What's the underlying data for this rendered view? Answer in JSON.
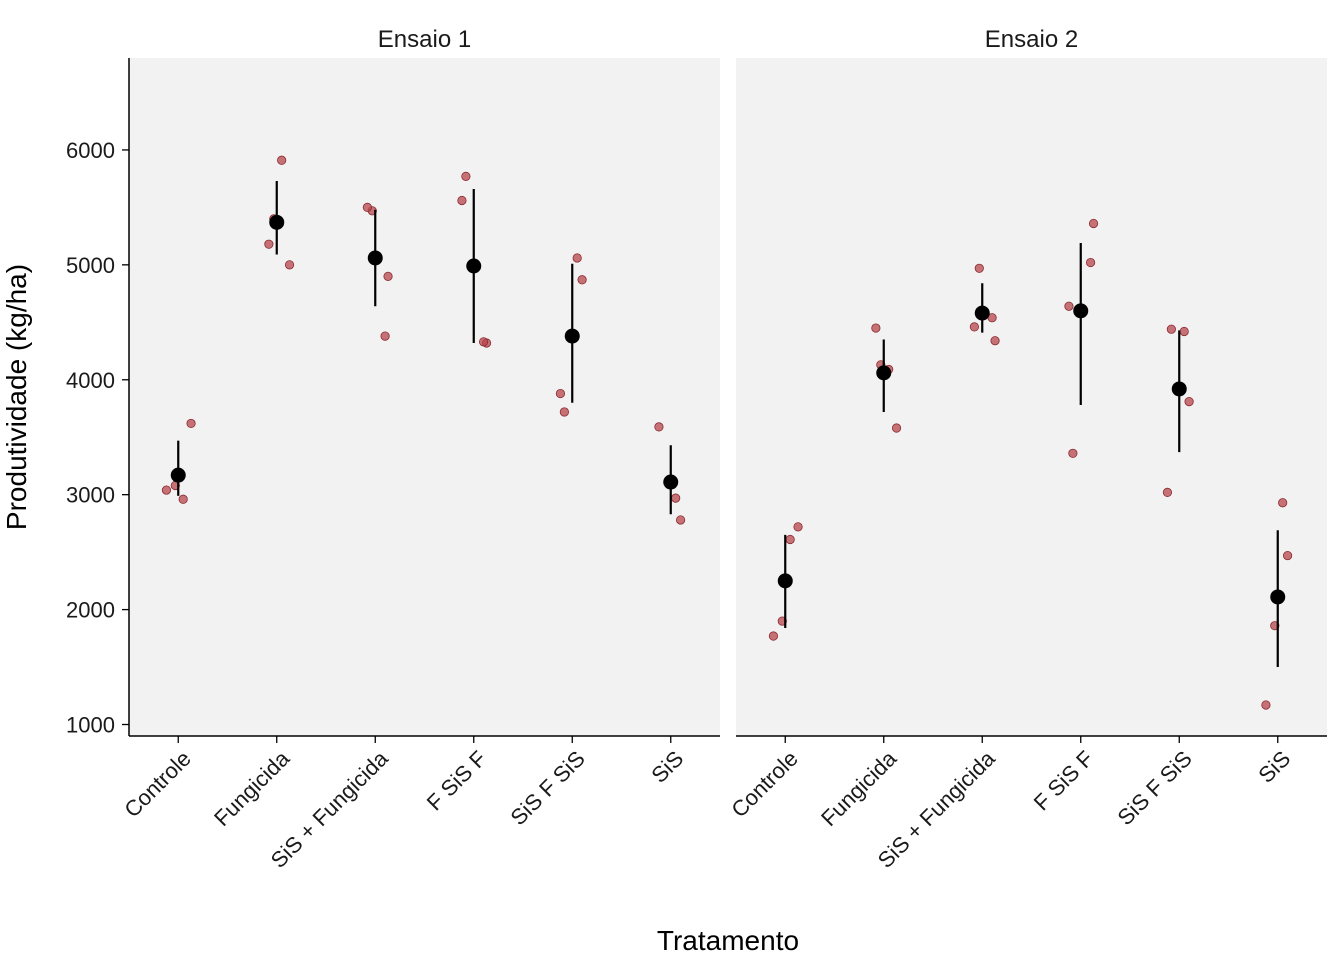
{
  "chart_data": {
    "type": "scatter",
    "ylabel": "Produtividade (kg/ha)",
    "xlabel": "Tratamento",
    "ylim": [
      900,
      6800
    ],
    "y_ticks": [
      1000,
      2000,
      3000,
      4000,
      5000,
      6000
    ],
    "categories": [
      "Controle",
      "Fungicida",
      "SiS + Fungicida",
      "F SiS F",
      "SiS F SiS",
      "SiS"
    ],
    "grid": false,
    "colors": {
      "panel_bg": "#f2f2f2",
      "raw_point": "#b5454b",
      "summary": "#000000"
    },
    "facets": [
      {
        "title": "Ensaio 1",
        "raw_points": [
          {
            "category": "Controle",
            "values": [
              3040,
              2960,
              3080,
              3620
            ]
          },
          {
            "category": "Fungicida",
            "values": [
              5910,
              5400,
              5000,
              5180
            ]
          },
          {
            "category": "SiS + Fungicida",
            "values": [
              5470,
              4900,
              5500,
              4380
            ]
          },
          {
            "category": "F SiS F",
            "values": [
              4320,
              5770,
              4330,
              5560
            ]
          },
          {
            "category": "SiS F SiS",
            "values": [
              3720,
              4870,
              3880,
              5060
            ]
          },
          {
            "category": "SiS",
            "values": [
              2780,
              3590,
              2970
            ]
          }
        ],
        "summary": [
          {
            "category": "Controle",
            "mean": 3170,
            "low": 2990,
            "high": 3470
          },
          {
            "category": "Fungicida",
            "mean": 5370,
            "low": 5090,
            "high": 5730
          },
          {
            "category": "SiS + Fungicida",
            "mean": 5060,
            "low": 4640,
            "high": 5480
          },
          {
            "category": "F SiS F",
            "mean": 4990,
            "low": 4320,
            "high": 5660
          },
          {
            "category": "SiS F SiS",
            "mean": 4380,
            "low": 3800,
            "high": 5010
          },
          {
            "category": "SiS",
            "mean": 3110,
            "low": 2830,
            "high": 3430
          }
        ]
      },
      {
        "title": "Ensaio 2",
        "raw_points": [
          {
            "category": "Controle",
            "values": [
              1770,
              2610,
              1900,
              2720
            ]
          },
          {
            "category": "Fungicida",
            "values": [
              4090,
              4130,
              3580,
              4450
            ]
          },
          {
            "category": "SiS + Fungicida",
            "values": [
              4970,
              4340,
              4460,
              4540
            ]
          },
          {
            "category": "F SiS F",
            "values": [
              5360,
              3360,
              5020,
              4640
            ]
          },
          {
            "category": "SiS F SiS",
            "values": [
              4440,
              3810,
              3020,
              4420
            ]
          },
          {
            "category": "SiS",
            "values": [
              2470,
              1170,
              2930,
              1860
            ]
          }
        ],
        "summary": [
          {
            "category": "Controle",
            "mean": 2250,
            "low": 1840,
            "high": 2650
          },
          {
            "category": "Fungicida",
            "mean": 4060,
            "low": 3720,
            "high": 4350
          },
          {
            "category": "SiS + Fungicida",
            "mean": 4580,
            "low": 4410,
            "high": 4840
          },
          {
            "category": "F SiS F",
            "mean": 4600,
            "low": 3780,
            "high": 5190
          },
          {
            "category": "SiS F SiS",
            "mean": 3920,
            "low": 3370,
            "high": 4430
          },
          {
            "category": "SiS",
            "mean": 2110,
            "low": 1500,
            "high": 2690
          }
        ]
      }
    ]
  }
}
